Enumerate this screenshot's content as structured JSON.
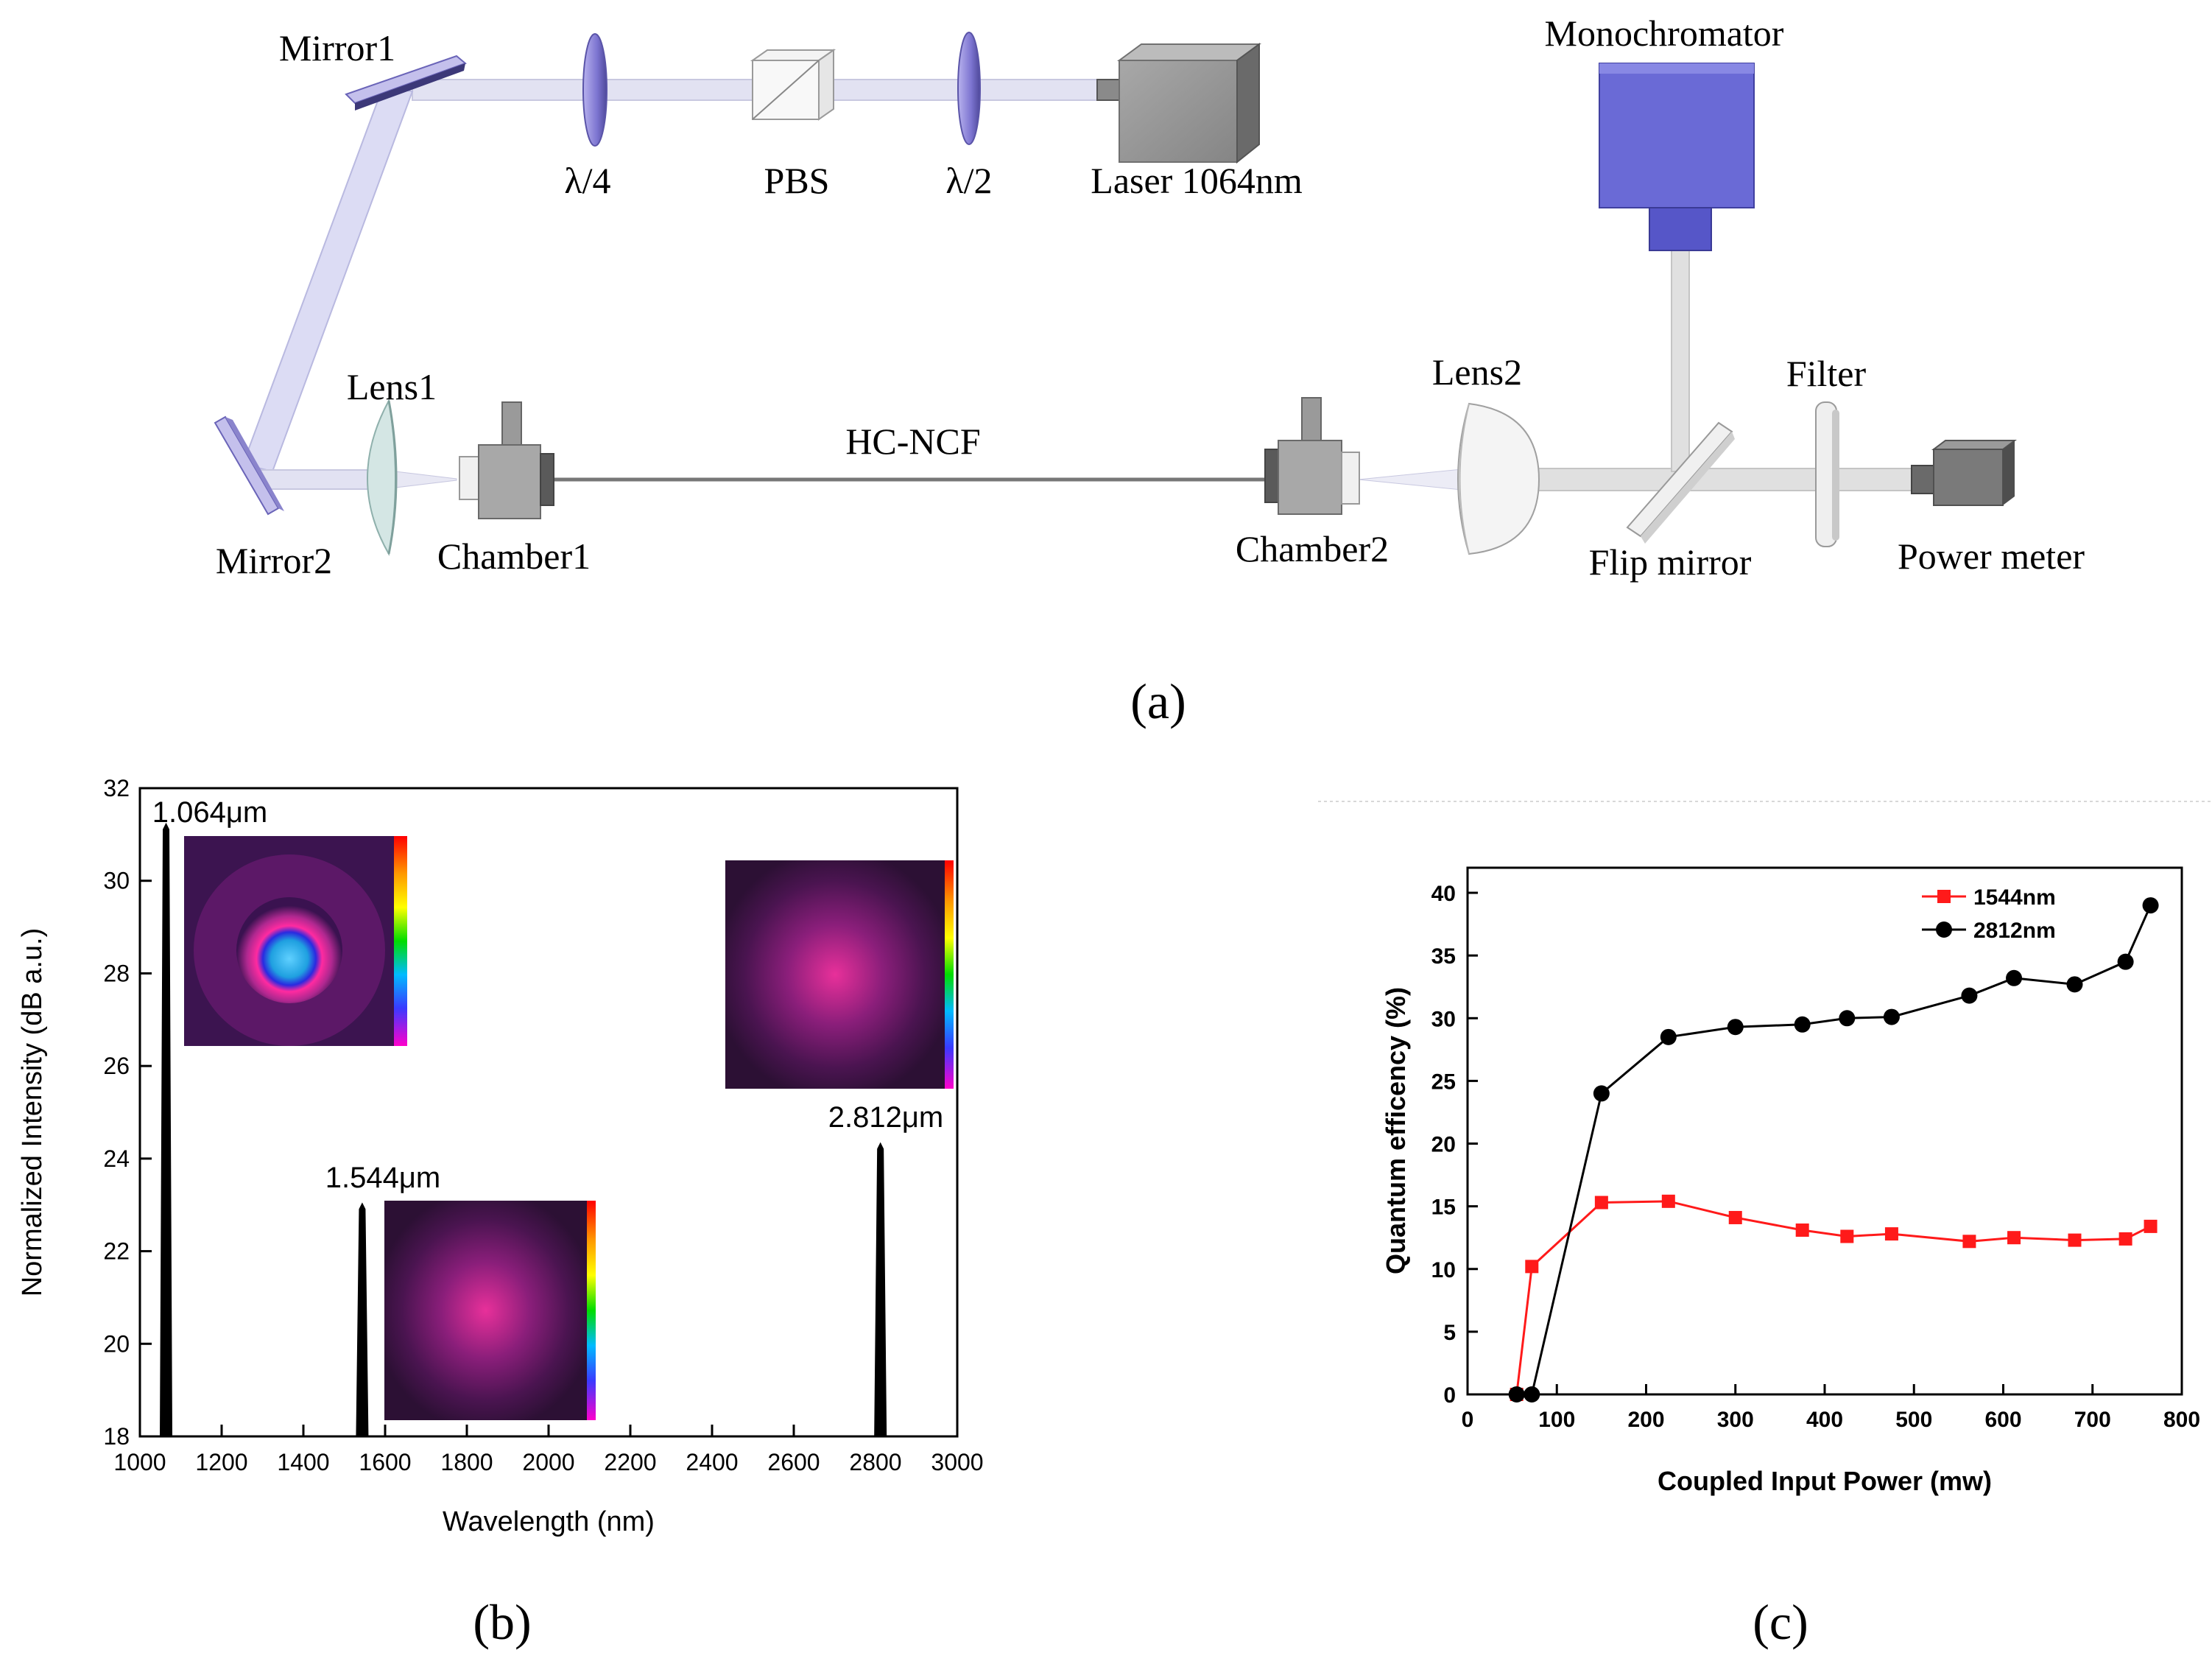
{
  "colors": {
    "beam": "#dcdcf4",
    "optic": "#8e88d8",
    "device": "#9a9a9a",
    "monochromator": "#6464d2",
    "series_red": "#ff1a1a",
    "series_black": "#000000"
  },
  "panel_a": {
    "labels": {
      "mirror1": "Mirror1",
      "quarter_wave": "λ/4",
      "pbs": "PBS",
      "half_wave": "λ/2",
      "laser": "Laser 1064nm",
      "monochromator": "Monochromator",
      "lens1": "Lens1",
      "hc_ncf": "HC-NCF",
      "lens2": "Lens2",
      "filter": "Filter",
      "mirror2": "Mirror2",
      "chamber1": "Chamber1",
      "chamber2": "Chamber2",
      "flip_mirror": "Flip mirror",
      "power_meter": "Power meter"
    },
    "caption": "(a)"
  },
  "panel_b": {
    "caption": "(b)",
    "peak_labels": [
      "1.064μm",
      "1.544μm",
      "2.812μm"
    ]
  },
  "panel_c": {
    "caption": "(c)"
  },
  "chart_data": [
    {
      "id": "b",
      "type": "line",
      "title": "",
      "xlabel": "Wavelength (nm)",
      "ylabel": "Normalized Intensity (dB a.u.)",
      "xlim": [
        1000,
        3000
      ],
      "ylim": [
        18,
        32
      ],
      "xticks": [
        1000,
        1200,
        1400,
        1600,
        1800,
        2000,
        2200,
        2400,
        2600,
        2800,
        3000
      ],
      "yticks": [
        18,
        20,
        22,
        24,
        26,
        28,
        30,
        32
      ],
      "peaks": [
        {
          "label": "1.064μm",
          "x": 1064,
          "y": 31.2
        },
        {
          "label": "1.544μm",
          "x": 1544,
          "y": 23.0
        },
        {
          "label": "2.812μm",
          "x": 2812,
          "y": 24.3
        }
      ]
    },
    {
      "id": "c",
      "type": "line",
      "title": "",
      "xlabel": "Coupled Input Power (mw)",
      "ylabel": "Quantum efficency (%)",
      "xlim": [
        0,
        800
      ],
      "ylim": [
        0,
        42
      ],
      "xticks": [
        0,
        100,
        200,
        300,
        400,
        500,
        600,
        700,
        800
      ],
      "yticks": [
        0,
        5,
        10,
        15,
        20,
        25,
        30,
        35,
        40
      ],
      "legend_position": "top-right",
      "series": [
        {
          "name": "1544nm",
          "color": "#ff1a1a",
          "marker": "square",
          "x": [
            55,
            72,
            150,
            225,
            300,
            375,
            425,
            475,
            562,
            612,
            680,
            737,
            765
          ],
          "y": [
            0,
            10.2,
            15.3,
            15.4,
            14.1,
            13.1,
            12.6,
            12.8,
            12.2,
            12.5,
            12.3,
            12.4,
            13.4
          ]
        },
        {
          "name": "2812nm",
          "color": "#000000",
          "marker": "circle",
          "x": [
            55,
            72,
            150,
            225,
            300,
            375,
            425,
            475,
            562,
            612,
            680,
            737,
            765
          ],
          "y": [
            0,
            0,
            24.0,
            28.5,
            29.3,
            29.5,
            30.0,
            30.1,
            31.8,
            33.2,
            32.7,
            34.5,
            39.0
          ]
        }
      ]
    }
  ]
}
